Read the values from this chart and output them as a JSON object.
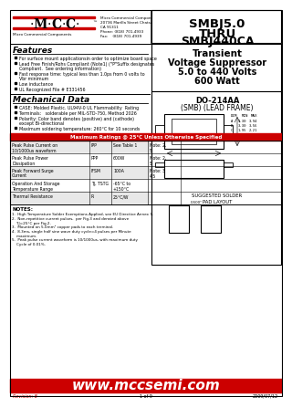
{
  "title_part1": "SMBJ5.0",
  "title_part2": "THRU",
  "title_part3": "SMBJ440CA",
  "subtitle1": "Transient",
  "subtitle2": "Voltage Suppressor",
  "subtitle3": "5.0 to 440 Volts",
  "subtitle4": "600 Watt",
  "package": "DO-214AA",
  "package2": "(SMB) (LEAD FRAME)",
  "company": "Micro Commercial Components",
  "address1": "20736 Marilla Street Chatsworth",
  "address2": "CA 91311",
  "phone": "Phone: (818) 701-4933",
  "fax": "Fax:    (818) 701-4939",
  "features_title": "Features",
  "features": [
    "For surface mount applicationsin order to optimize board space",
    "Lead Free Finish/Rohs Compliant (Note1) (\"P\"Suffix designates\nCompliant.  See ordering information)",
    "Fast response time: typical less than 1.0ps from 0 volts to\nVbr minimum",
    "Low inductance",
    "UL Recognized File # E331456"
  ],
  "mech_title": "Mechanical Data",
  "mech_items": [
    "CASE: Molded Plastic. UL94V-0 UL Flammability  Rating",
    "Terminals:   solderable per MIL-STD-750, Method 2026",
    "Polarity: Color band denotes (positive) and (cathode)\nexcept Bi-directional",
    "Maximum soldering temperature: 260°C for 10 seconds"
  ],
  "table_title": "Maximum Ratings @ 25°C Unless Otherwise Specified",
  "table_rows": [
    [
      "Peak Pulse Current on\n10/1000us waveform",
      "IPP",
      "See Table 1",
      "Note: 2,\n5"
    ],
    [
      "Peak Pulse Power\nDissipation",
      "PPP",
      "600W",
      "Note: 2,\n5"
    ],
    [
      "Peak Forward Surge\nCurrent",
      "IFSM",
      "100A",
      "Note: 3\n4,5"
    ],
    [
      "Operation And Storage\nTemperature Range",
      "TJ, TSTG",
      "-65°C to\n+150°C",
      ""
    ],
    [
      "Thermal Resistance",
      "R",
      "25°C/W",
      ""
    ]
  ],
  "notes_title": "NOTES:",
  "notes": [
    "1.  High Temperature Solder Exemptions Applied, see EU Directive Annex 7.",
    "2.  Non-repetitive current pulses,  per Fig.3 and derated above\n    TJ=25°C per Fig.2.",
    "3.  Mounted on 5.0mm² copper pads to each terminal.",
    "4.  8.3ms, single half sine wave duty cycle=4 pulses per Minute\n    maximum.",
    "5.  Peak pulse current waveform is 10/1000us, with maximum duty\n    Cycle of 0.01%."
  ],
  "website": "www.mccsemi.com",
  "revision": "Revision: 8",
  "page": "1 of 9",
  "date": "2009/07/12",
  "red_color": "#cc0000",
  "bg_color": "#ffffff",
  "text_color": "#000000"
}
